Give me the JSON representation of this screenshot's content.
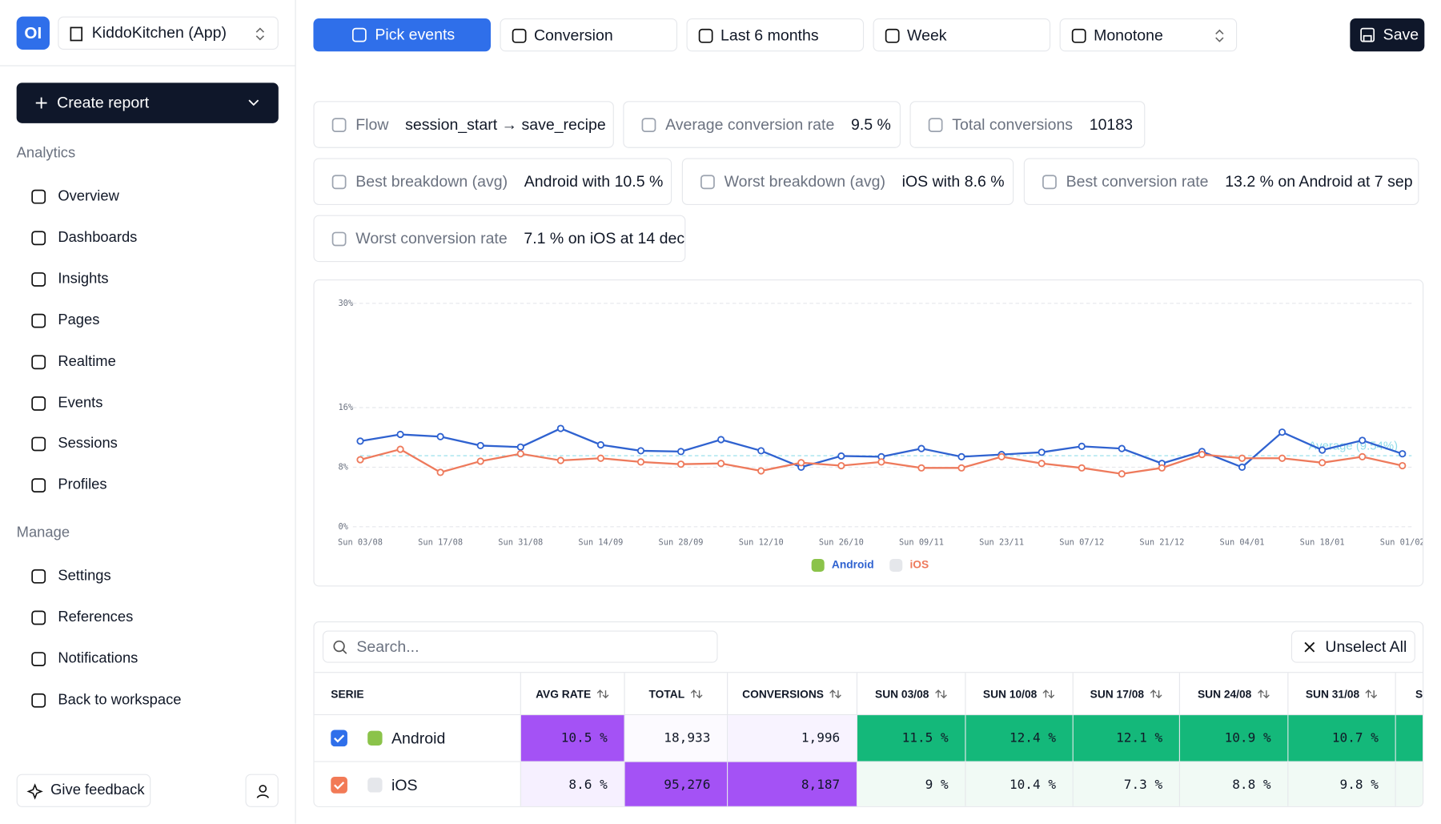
{
  "logo": "OI",
  "sidebar": {
    "project": "KiddoKitchen (App)",
    "create": "Create report",
    "sections": [
      {
        "title": "Analytics",
        "items": [
          "Overview",
          "Dashboards",
          "Insights",
          "Pages",
          "Realtime",
          "Events",
          "Sessions",
          "Profiles"
        ]
      },
      {
        "title": "Manage",
        "items": [
          "Settings",
          "References",
          "Notifications",
          "Back to workspace"
        ]
      }
    ],
    "feedback": "Give feedback"
  },
  "toolbar": {
    "buttons": [
      "Pick events",
      "Conversion",
      "Last 6 months",
      "Week",
      "Monotone"
    ],
    "save": "Save"
  },
  "stats": [
    {
      "label": "Flow",
      "value": "session_start → save_recipe"
    },
    {
      "label": "Average conversion rate",
      "value": "9.5 %"
    },
    {
      "label": "Total conversions",
      "value": "10183"
    },
    {
      "label": "Best breakdown (avg)",
      "value": "Android with 10.5 %"
    },
    {
      "label": "Worst breakdown (avg)",
      "value": "iOS with 8.6 %"
    },
    {
      "label": "Best conversion rate",
      "value": "13.2 % on Android at 7 sep"
    },
    {
      "label": "Worst conversion rate",
      "value": "7.1 % on iOS at 14 dec"
    }
  ],
  "chart_data": {
    "type": "line",
    "categories": [
      "Sun 03/08",
      null,
      "Sun 17/08",
      null,
      "Sun 31/08",
      null,
      "Sun 14/09",
      null,
      "Sun 28/09",
      null,
      "Sun 12/10",
      null,
      "Sun 26/10",
      null,
      "Sun 09/11",
      null,
      "Sun 23/11",
      null,
      "Sun 07/12",
      null,
      "Sun 21/12",
      null,
      "Sun 04/01",
      null,
      "Sun 18/01",
      null,
      "Sun 01/02"
    ],
    "series": [
      {
        "name": "Android",
        "color": "#2f62d0",
        "values": [
          11.5,
          12.4,
          12.1,
          10.9,
          10.7,
          13.2,
          11.0,
          10.2,
          10.1,
          11.7,
          10.2,
          8.0,
          9.5,
          9.4,
          10.5,
          9.4,
          9.7,
          10.0,
          10.8,
          10.5,
          8.5,
          10.1,
          8.0,
          12.7,
          10.3,
          11.6,
          9.8
        ]
      },
      {
        "name": "iOS",
        "color": "#ee7a5c",
        "values": [
          9,
          10.4,
          7.3,
          8.8,
          9.8,
          8.9,
          9.2,
          8.7,
          8.4,
          8.5,
          7.5,
          8.6,
          8.2,
          8.7,
          7.9,
          7.9,
          9.4,
          8.5,
          7.9,
          7.1,
          7.9,
          9.7,
          9.2,
          9.2,
          8.6,
          9.4,
          8.2
        ]
      }
    ],
    "average": 9.54,
    "average_label": "Average (9.54%)",
    "ylim": [
      0,
      30
    ],
    "yticks": [
      {
        "value": 0,
        "label": "0%"
      },
      {
        "value": 8,
        "label": "8%"
      },
      {
        "value": 16,
        "label": "16%"
      },
      {
        "value": 30,
        "label": "30%"
      }
    ],
    "grid": true
  },
  "table": {
    "search_placeholder": "Search...",
    "unselect": "Unselect All",
    "columns": [
      "SERIE",
      "AVG RATE",
      "TOTAL",
      "CONVERSIONS",
      "SUN 03/08",
      "SUN 10/08",
      "SUN 17/08",
      "SUN 24/08",
      "SUN 31/08",
      "SU"
    ],
    "rows": [
      {
        "name": "Android",
        "cells": [
          "10.5 %",
          "18,933",
          "1,996",
          "11.5 %",
          "12.4 %",
          "12.1 %",
          "10.9 %",
          "10.7 %"
        ]
      },
      {
        "name": "iOS",
        "cells": [
          "8.6 %",
          "95,276",
          "8,187",
          "9 %",
          "10.4 %",
          "7.3 %",
          "8.8 %",
          "9.8 %"
        ]
      }
    ]
  }
}
